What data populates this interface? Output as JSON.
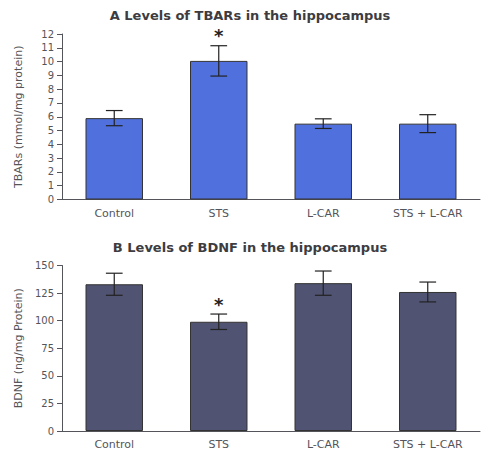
{
  "chart_data": [
    {
      "type": "bar",
      "title": "A Levels of TBARs in the hippocampus",
      "categories": [
        "Control",
        "STS",
        "L-CAR",
        "STS + L-CAR"
      ],
      "values": [
        5.9,
        10.05,
        5.5,
        5.5
      ],
      "errors": [
        0.55,
        1.1,
        0.35,
        0.65
      ],
      "ylim": [
        0,
        12
      ],
      "yticks": [
        0,
        1,
        2,
        3,
        4,
        5,
        6,
        7,
        8,
        9,
        10,
        11,
        12
      ],
      "ylabel": "TBARs (mmol/mg protein)",
      "annotations": [
        {
          "category": "STS",
          "text": "*"
        }
      ],
      "grid": false
    },
    {
      "type": "bar",
      "title": "B Levels of BDNF in the hippocampus",
      "categories": [
        "Control",
        "STS",
        "L-CAR",
        "STS + L-CAR"
      ],
      "values": [
        133,
        99,
        134,
        126
      ],
      "errors": [
        10,
        7,
        11,
        9
      ],
      "ylim": [
        0,
        150
      ],
      "yticks": [
        0,
        25,
        50,
        75,
        100,
        125,
        150
      ],
      "ylabel": "BDNF (ng/mg Protein)",
      "annotations": [
        {
          "category": "STS",
          "text": "*"
        }
      ],
      "grid": false
    }
  ]
}
